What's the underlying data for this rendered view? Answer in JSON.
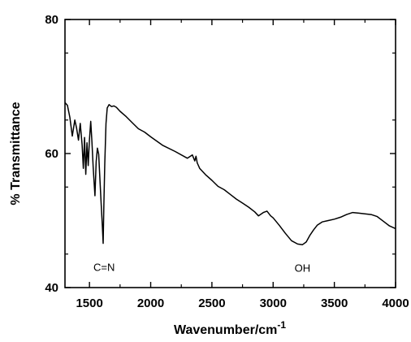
{
  "chart_data": {
    "type": "line",
    "title": "",
    "xlabel": "Wavenumber/cm",
    "xlabel_superscript": "-1",
    "ylabel": "% Transmittance",
    "xlim": [
      1300,
      4000
    ],
    "ylim": [
      40,
      80
    ],
    "xticks": [
      1500,
      2000,
      2500,
      3000,
      3500,
      4000
    ],
    "yticks": [
      40,
      60,
      80
    ],
    "xtick_labels": [
      "1500",
      "2000",
      "2500",
      "3000",
      "3500",
      "4000"
    ],
    "ytick_labels": [
      "40",
      "60",
      "80"
    ],
    "grid": false,
    "legend": "none",
    "line_color": "#000000",
    "annotations": [
      {
        "text": "C=N",
        "x": 1620,
        "y": 43.1
      },
      {
        "text": "OH",
        "x": 3240,
        "y": 43.0
      }
    ],
    "series": [
      {
        "x": [
          1300,
          1320,
          1340,
          1360,
          1380,
          1395,
          1410,
          1425,
          1440,
          1450,
          1460,
          1470,
          1480,
          1490,
          1500,
          1510,
          1520,
          1530,
          1545,
          1555,
          1565,
          1575,
          1585,
          1595,
          1605,
          1612,
          1618,
          1625,
          1635,
          1645,
          1660,
          1680,
          1700,
          1720,
          1750,
          1800,
          1850,
          1900,
          1950,
          2000,
          2100,
          2200,
          2300,
          2340,
          2360,
          2370,
          2380,
          2400,
          2450,
          2500,
          2550,
          2600,
          2650,
          2700,
          2750,
          2800,
          2850,
          2880,
          2920,
          2950,
          2980,
          3000,
          3050,
          3100,
          3150,
          3200,
          3240,
          3270,
          3300,
          3330,
          3360,
          3400,
          3450,
          3500,
          3550,
          3600,
          3650,
          3700,
          3750,
          3800,
          3850,
          3900,
          3950,
          4000
        ],
        "y": [
          67.6,
          67.2,
          65.4,
          62.6,
          65.0,
          63.8,
          62.0,
          64.5,
          61.3,
          57.8,
          62.4,
          56.9,
          61.6,
          58.2,
          62.0,
          64.8,
          61.7,
          58.0,
          53.7,
          58.8,
          60.8,
          59.9,
          56.2,
          52.6,
          49.2,
          46.6,
          52.5,
          58.5,
          64.5,
          66.8,
          67.3,
          67.0,
          67.1,
          66.9,
          66.3,
          65.5,
          64.6,
          63.7,
          63.2,
          62.5,
          61.2,
          60.3,
          59.3,
          59.8,
          58.9,
          59.6,
          58.6,
          57.8,
          56.8,
          56.0,
          55.1,
          54.6,
          53.9,
          53.2,
          52.6,
          52.0,
          51.3,
          50.7,
          51.2,
          51.4,
          50.7,
          50.4,
          49.3,
          48.1,
          47.0,
          46.5,
          46.4,
          46.8,
          47.8,
          48.6,
          49.3,
          49.8,
          50.0,
          50.2,
          50.5,
          50.9,
          51.2,
          51.1,
          51.0,
          50.9,
          50.6,
          49.9,
          49.2,
          48.8
        ]
      }
    ]
  }
}
